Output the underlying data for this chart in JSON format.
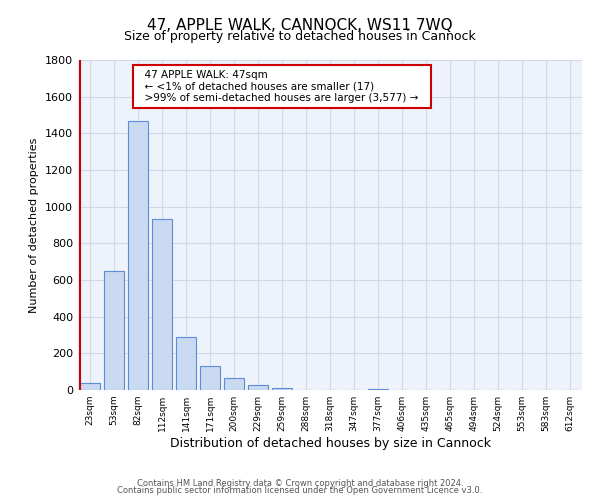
{
  "title": "47, APPLE WALK, CANNOCK, WS11 7WQ",
  "subtitle": "Size of property relative to detached houses in Cannock",
  "xlabel": "Distribution of detached houses by size in Cannock",
  "ylabel": "Number of detached properties",
  "bar_labels": [
    "23sqm",
    "53sqm",
    "82sqm",
    "112sqm",
    "141sqm",
    "171sqm",
    "200sqm",
    "229sqm",
    "259sqm",
    "288sqm",
    "318sqm",
    "347sqm",
    "377sqm",
    "406sqm",
    "435sqm",
    "465sqm",
    "494sqm",
    "524sqm",
    "553sqm",
    "583sqm",
    "612sqm"
  ],
  "bar_values": [
    40,
    650,
    1470,
    935,
    290,
    130,
    65,
    25,
    10,
    0,
    0,
    0,
    5,
    0,
    0,
    0,
    0,
    0,
    0,
    0,
    0
  ],
  "bar_color": "#c9d9f0",
  "bar_edge_color": "#5b8dd9",
  "ylim": [
    0,
    1800
  ],
  "yticks": [
    0,
    200,
    400,
    600,
    800,
    1000,
    1200,
    1400,
    1600,
    1800
  ],
  "marker_color": "#cc0000",
  "annotation_title": "47 APPLE WALK: 47sqm",
  "annotation_line1": "← <1% of detached houses are smaller (17)",
  "annotation_line2": ">99% of semi-detached houses are larger (3,577) →",
  "annotation_box_color": "#ffffff",
  "annotation_box_edge": "#cc0000",
  "footer1": "Contains HM Land Registry data © Crown copyright and database right 2024.",
  "footer2": "Contains public sector information licensed under the Open Government Licence v3.0.",
  "grid_color": "#d0d8e8",
  "background_color": "#eef2fa"
}
